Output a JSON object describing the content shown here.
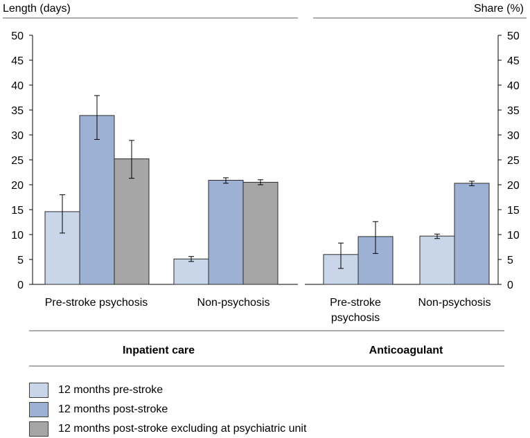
{
  "chart_data": [
    {
      "type": "bar",
      "title": "Inpatient care",
      "ylabel": "Length (days)",
      "ylim": [
        0,
        50
      ],
      "yticks": [
        "0",
        "5",
        "10",
        "15",
        "20",
        "25",
        "30",
        "35",
        "40",
        "45",
        "50"
      ],
      "categories": [
        "Pre-stroke psychosis",
        "Non-psychosis"
      ],
      "series": [
        {
          "name": "12 months pre-stroke",
          "values": [
            14.6,
            5.1
          ],
          "error_low": [
            10.3,
            4.6
          ],
          "error_high": [
            18.0,
            5.6
          ]
        },
        {
          "name": "12 months post-stroke",
          "values": [
            33.9,
            20.9
          ],
          "error_low": [
            29.1,
            20.3
          ],
          "error_high": [
            37.9,
            21.4
          ]
        },
        {
          "name": "12 months post-stroke excluding at psychiatric unit",
          "values": [
            25.2,
            20.5
          ],
          "error_low": [
            21.3,
            20.0
          ],
          "error_high": [
            28.9,
            21.0
          ]
        }
      ]
    },
    {
      "type": "bar",
      "title": "Anticoagulant",
      "ylabel": "Share (%)",
      "ylim": [
        0,
        50
      ],
      "yticks": [
        "0",
        "5",
        "10",
        "15",
        "20",
        "25",
        "30",
        "35",
        "40",
        "45",
        "50"
      ],
      "categories": [
        "Pre-stroke psychosis",
        "Non-psychosis"
      ],
      "category_lines": [
        [
          "Pre-stroke",
          "psychosis"
        ],
        [
          "Non-psychosis"
        ]
      ],
      "series": [
        {
          "name": "12 months pre-stroke",
          "values": [
            6.0,
            9.7
          ],
          "error_low": [
            3.2,
            9.2
          ],
          "error_high": [
            8.3,
            10.1
          ]
        },
        {
          "name": "12 months post-stroke",
          "values": [
            9.6,
            20.3
          ],
          "error_low": [
            6.2,
            19.8
          ],
          "error_high": [
            12.6,
            20.7
          ]
        }
      ]
    }
  ],
  "legend": [
    {
      "label": "12 months pre-stroke",
      "color": "#c9d5e8"
    },
    {
      "label": "12 months post-stroke",
      "color": "#9db1d5"
    },
    {
      "label": "12 months post-stroke excluding at psychiatric unit",
      "color": "#a6a6a6"
    }
  ],
  "colors": {
    "axis": "#000000",
    "bar_stroke": "#2b2b2b",
    "rule": "#595959"
  }
}
